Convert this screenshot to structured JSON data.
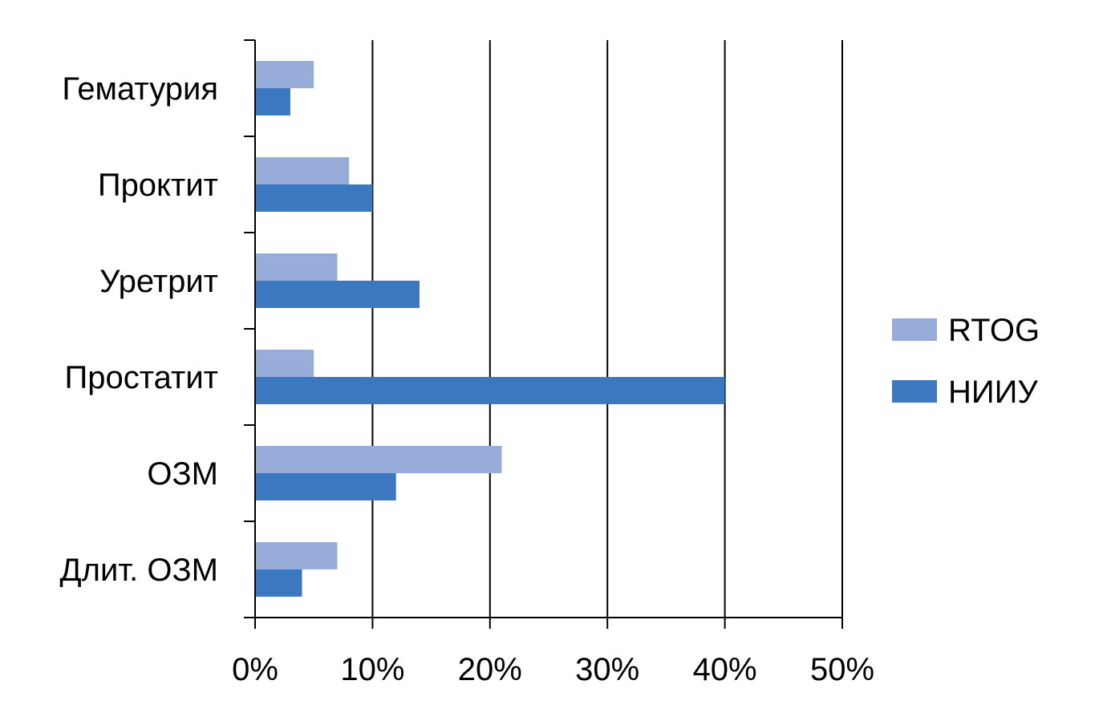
{
  "chart_data": {
    "type": "bar",
    "orientation": "horizontal",
    "categories": [
      "Гематурия",
      "Проктит",
      "Уретрит",
      "Простатит",
      "ОЗМ",
      "Длит. ОЗМ"
    ],
    "series": [
      {
        "name": "RTOG",
        "values": [
          5,
          8,
          7,
          5,
          21,
          7
        ],
        "color": "#97acd8"
      },
      {
        "name": "НИИУ",
        "values": [
          3,
          10,
          14,
          40,
          12,
          4
        ],
        "color": "#3b78bf"
      }
    ],
    "xlim": [
      0,
      50
    ],
    "x_ticks": [
      0,
      10,
      20,
      30,
      40,
      50
    ],
    "x_tick_labels": [
      "0%",
      "10%",
      "20%",
      "30%",
      "40%",
      "50%"
    ],
    "value_unit": "%",
    "grid": "vertical",
    "legend_position": "right",
    "title": "",
    "xlabel": "",
    "ylabel": ""
  }
}
